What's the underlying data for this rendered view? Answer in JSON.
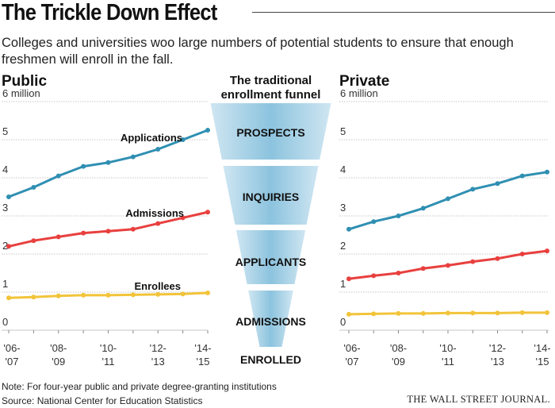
{
  "title": "The Trickle Down Effect",
  "subtitle": "Colleges and universities woo large numbers of potential students to ensure that enough freshmen will enroll in the fall.",
  "note": "Note: For four-year public and private degree-granting institutions",
  "source": "Source: National Center for Education Statistics",
  "credit": "THE WALL STREET JOURNAL.",
  "colors": {
    "applications": "#2f8fb2",
    "admissions": "#e8403e",
    "enrollees": "#f2c43a",
    "funnel": "#8cc3de",
    "grid": "#c7c7c7"
  },
  "funnel": {
    "title_line1": "The traditional",
    "title_line2": "enrollment funnel",
    "stages": [
      "PROSPECTS",
      "INQUIRIES",
      "APPLICANTS",
      "ADMISSIONS",
      "ENROLLED"
    ]
  },
  "chart_data": [
    {
      "type": "line",
      "title": "Public",
      "ylim": [
        0,
        6
      ],
      "ytick_labels": [
        "0",
        "1",
        "2",
        "3",
        "4",
        "5",
        "6 million"
      ],
      "x": [
        "'06-'07",
        "'07-'08",
        "'08-'09",
        "'09-'10",
        "'10-'11",
        "'11-'12",
        "'12-'13",
        "'13-'14",
        "'14-'15"
      ],
      "xtick_labels": [
        {
          "line1": "'06-",
          "line2": "'07"
        },
        {
          "line1": "'08-",
          "line2": "'09"
        },
        {
          "line1": "'10-",
          "line2": "'11"
        },
        {
          "line1": "'12-",
          "line2": "'13"
        },
        {
          "line1": "'14-",
          "line2": "'15"
        }
      ],
      "series": [
        {
          "name": "Applications",
          "key": "applications",
          "values": [
            3.5,
            3.75,
            4.05,
            4.3,
            4.4,
            4.55,
            4.75,
            5.0,
            5.25
          ]
        },
        {
          "name": "Admissions",
          "key": "admissions",
          "values": [
            2.2,
            2.35,
            2.45,
            2.55,
            2.6,
            2.65,
            2.8,
            2.95,
            3.1
          ]
        },
        {
          "name": "Enrollees",
          "key": "enrollees",
          "values": [
            0.85,
            0.87,
            0.9,
            0.92,
            0.92,
            0.93,
            0.94,
            0.95,
            0.98
          ]
        }
      ]
    },
    {
      "type": "line",
      "title": "Private",
      "ylim": [
        0,
        6
      ],
      "ytick_labels": [
        "0",
        "1",
        "2",
        "3",
        "4",
        "5",
        "6 million"
      ],
      "x": [
        "'06-'07",
        "'07-'08",
        "'08-'09",
        "'09-'10",
        "'10-'11",
        "'11-'12",
        "'12-'13",
        "'13-'14",
        "'14-'15"
      ],
      "xtick_labels": [
        {
          "line1": "'06-",
          "line2": "'07"
        },
        {
          "line1": "'08-",
          "line2": "'09"
        },
        {
          "line1": "'10-",
          "line2": "'11"
        },
        {
          "line1": "'12-",
          "line2": "'13"
        },
        {
          "line1": "'14-",
          "line2": "'15"
        }
      ],
      "series": [
        {
          "name": "Applications",
          "key": "applications",
          "values": [
            2.65,
            2.85,
            3.0,
            3.2,
            3.45,
            3.7,
            3.85,
            4.05,
            4.15
          ]
        },
        {
          "name": "Admissions",
          "key": "admissions",
          "values": [
            1.35,
            1.43,
            1.5,
            1.62,
            1.7,
            1.8,
            1.88,
            2.0,
            2.08
          ]
        },
        {
          "name": "Enrollees",
          "key": "enrollees",
          "values": [
            0.42,
            0.43,
            0.44,
            0.44,
            0.45,
            0.45,
            0.45,
            0.46,
            0.46
          ]
        }
      ]
    }
  ]
}
